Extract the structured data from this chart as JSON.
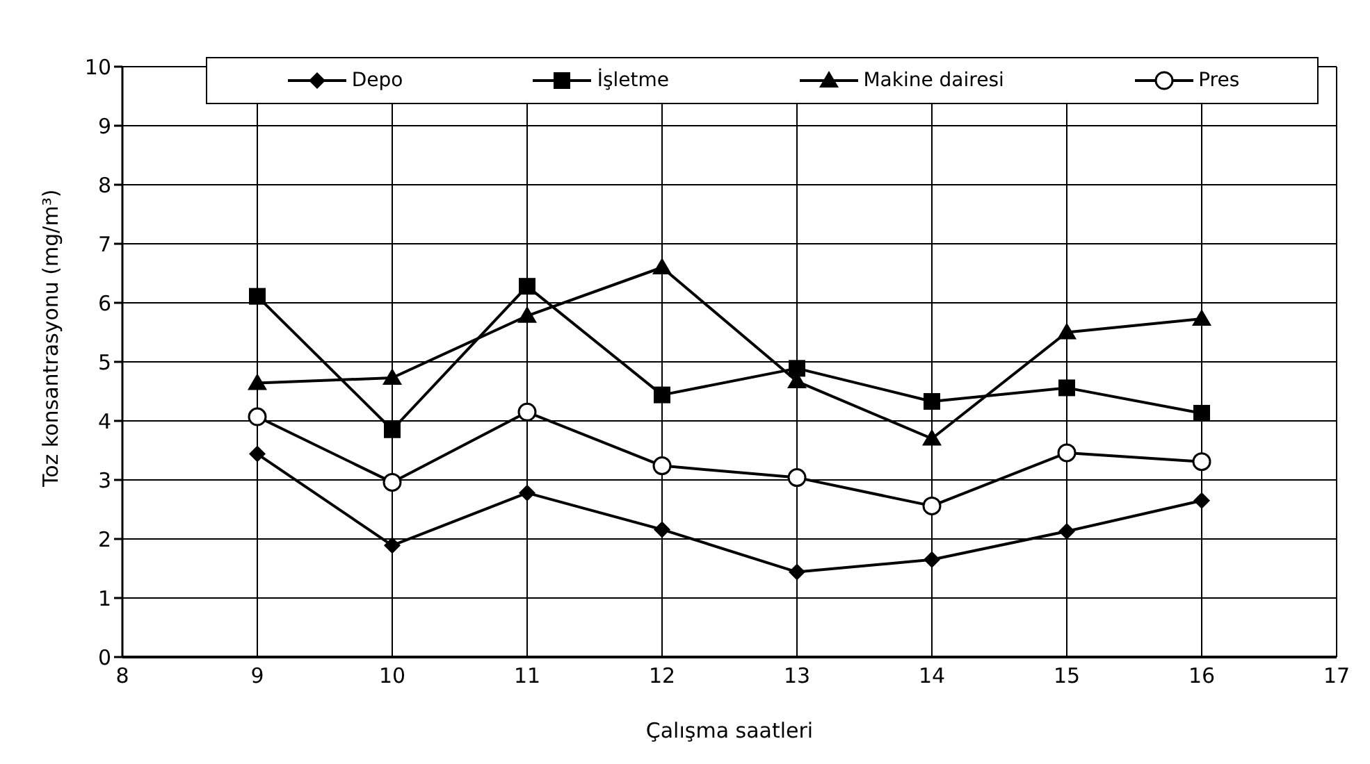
{
  "chart_data": {
    "type": "line",
    "xlabel": "Çalışma saatleri",
    "ylabel": "Toz konsantrasyonu (mg/m³)",
    "x": [
      9,
      10,
      11,
      12,
      13,
      14,
      15,
      16
    ],
    "xlim": [
      8,
      17
    ],
    "xticks": [
      8,
      9,
      10,
      11,
      12,
      13,
      14,
      15,
      16,
      17
    ],
    "ylim": [
      0,
      10
    ],
    "yticks": [
      0,
      1,
      2,
      3,
      4,
      5,
      6,
      7,
      8,
      9,
      10
    ],
    "grid": true,
    "legend": "top",
    "line_style": "solid",
    "series": [
      {
        "name": "Depo",
        "color": "#000000",
        "marker": "diamond",
        "values": [
          3.44,
          1.89,
          2.78,
          2.16,
          1.44,
          1.65,
          2.13,
          2.65
        ]
      },
      {
        "name": "İşletme",
        "color": "#000000",
        "marker": "square",
        "values": [
          6.11,
          3.85,
          6.28,
          4.44,
          4.89,
          4.33,
          4.56,
          4.13
        ]
      },
      {
        "name": "Makine dairesi",
        "color": "#000000",
        "marker": "triangle",
        "values": [
          4.64,
          4.73,
          5.78,
          6.6,
          4.67,
          3.7,
          5.5,
          5.73
        ]
      },
      {
        "name": "Pres",
        "color": "#000000",
        "marker": "circle",
        "values": [
          4.07,
          2.96,
          4.15,
          3.24,
          3.04,
          2.56,
          3.46,
          3.31
        ]
      }
    ]
  }
}
